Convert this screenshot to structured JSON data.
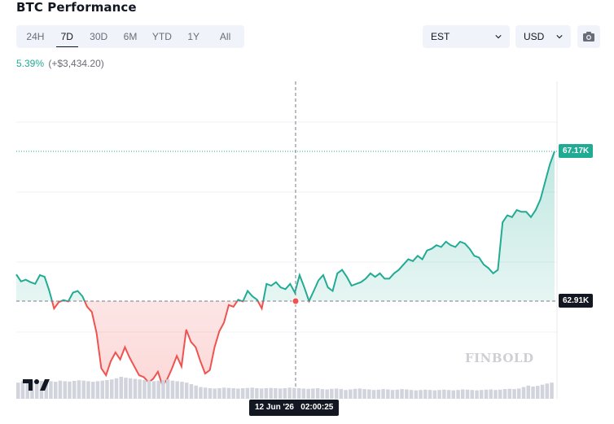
{
  "title": "BTC Performance",
  "range_tabs": [
    {
      "label": "24H",
      "active": false
    },
    {
      "label": "7D",
      "active": true
    },
    {
      "label": "30D",
      "active": false
    },
    {
      "label": "6M",
      "active": false
    },
    {
      "label": "YTD",
      "active": false
    },
    {
      "label": "1Y",
      "active": false
    },
    {
      "label": "All",
      "active": false
    }
  ],
  "timezone": {
    "value": "EST",
    "icon": "chevron-down-icon"
  },
  "currency": {
    "value": "USD",
    "icon": "chevron-down-icon"
  },
  "camera_icon": "camera-icon",
  "change": {
    "percent": "5.39%",
    "absolute": "(+$3,434.20)"
  },
  "brand": "FINBOLD",
  "colors": {
    "up": "#22ab94",
    "down": "#ef5350",
    "crosshair_tag": "#131722",
    "volume": "#d1d4dc"
  },
  "chart_data": {
    "type": "area",
    "title": "",
    "xlabel": "",
    "ylabel": "",
    "reference_price": 62910,
    "reference_label": "62.91K",
    "last_price": 67170,
    "last_label": "67.17K",
    "crosshair_time_label": "12 Jun '26   02:00:25",
    "ylim": [
      59800,
      68850
    ],
    "y": [
      63670,
      63470,
      63520,
      63450,
      63400,
      63650,
      63600,
      63200,
      62700,
      62880,
      62940,
      62900,
      63150,
      63200,
      63050,
      62750,
      62600,
      62000,
      61000,
      60800,
      61200,
      61450,
      61250,
      61600,
      61300,
      61050,
      60800,
      60750,
      60600,
      60700,
      60900,
      60500,
      60700,
      61000,
      61350,
      61050,
      62100,
      61750,
      61600,
      61200,
      60850,
      60950,
      61600,
      62050,
      62300,
      62800,
      62750,
      62950,
      62900,
      63200,
      63050,
      62950,
      62700,
      63400,
      63350,
      63450,
      63300,
      63250,
      63400,
      63150,
      63650,
      63300,
      62910,
      63200,
      63500,
      63650,
      63300,
      63200,
      63700,
      63800,
      63600,
      63350,
      63400,
      63450,
      63550,
      63700,
      63600,
      63700,
      63550,
      63550,
      63700,
      63800,
      63950,
      64100,
      64050,
      64200,
      64100,
      64350,
      64400,
      64500,
      64450,
      64600,
      64500,
      64450,
      64600,
      64550,
      64400,
      64200,
      64150,
      63950,
      63850,
      63700,
      63800,
      65150,
      65350,
      65300,
      65500,
      65450,
      65450,
      65300,
      65500,
      65800,
      66300,
      66800,
      67170
    ],
    "volume": [
      0.55,
      0.6,
      0.58,
      0.62,
      0.6,
      0.61,
      0.63,
      0.6,
      0.58,
      0.62,
      0.6,
      0.59,
      0.61,
      0.63,
      0.62,
      0.6,
      0.58,
      0.6,
      0.62,
      0.64,
      0.66,
      0.7,
      0.75,
      0.72,
      0.7,
      0.68,
      0.66,
      0.64,
      0.62,
      0.6,
      0.62,
      0.64,
      0.66,
      0.62,
      0.6,
      0.58,
      0.55,
      0.5,
      0.45,
      0.4,
      0.38,
      0.36,
      0.35,
      0.36,
      0.38,
      0.37,
      0.36,
      0.35,
      0.36,
      0.37,
      0.38,
      0.36,
      0.35,
      0.36,
      0.37,
      0.36,
      0.35,
      0.36,
      0.38,
      0.37,
      0.36,
      0.35,
      0.34,
      0.35,
      0.36,
      0.33,
      0.32,
      0.34,
      0.35,
      0.33,
      0.3,
      0.32,
      0.34,
      0.35,
      0.33,
      0.32,
      0.3,
      0.31,
      0.33,
      0.32,
      0.3,
      0.31,
      0.33,
      0.32,
      0.3,
      0.29,
      0.3,
      0.31,
      0.3,
      0.29,
      0.3,
      0.31,
      0.3,
      0.29,
      0.3,
      0.32,
      0.31,
      0.3,
      0.29,
      0.3,
      0.31,
      0.32,
      0.3,
      0.31,
      0.33,
      0.34,
      0.33,
      0.35,
      0.4,
      0.45,
      0.42,
      0.44,
      0.48,
      0.52,
      0.55
    ]
  }
}
